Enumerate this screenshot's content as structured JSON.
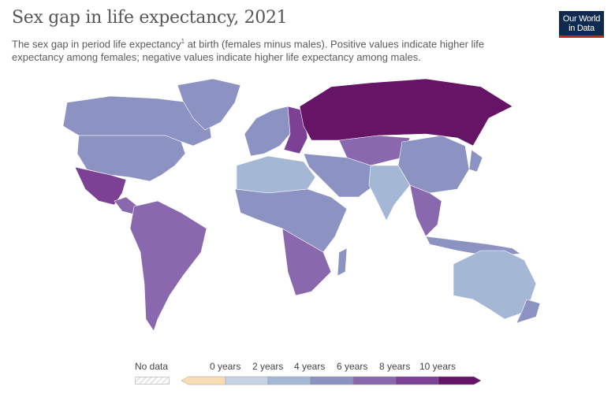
{
  "header": {
    "title": "Sex gap in life expectancy, 2021",
    "subtitle_a": "The sex gap in period life expectancy",
    "subtitle_sup": "1",
    "subtitle_b": " at birth (females minus males). Positive values indicate higher life expectancy among females; negative values indicate higher life expectancy among males.",
    "logo_line1": "Our World",
    "logo_line2": "in Data"
  },
  "legend": {
    "no_data": "No data",
    "ticks": [
      "0 years",
      "2 years",
      "4 years",
      "6 years",
      "8 years",
      "10 years"
    ],
    "bins": [
      {
        "range": "<0",
        "color": "#f8dcb3"
      },
      {
        "range": "0-2",
        "color": "#c6d3e4"
      },
      {
        "range": "2-4",
        "color": "#a4b8d6"
      },
      {
        "range": "4-6",
        "color": "#8c93c2"
      },
      {
        "range": "6-8",
        "color": "#8a68ae"
      },
      {
        "range": "8-10",
        "color": "#7c4095"
      },
      {
        "range": ">10",
        "color": "#651466"
      }
    ]
  },
  "regions": [
    {
      "name": "Canada",
      "color": "#8c93c2"
    },
    {
      "name": "United States",
      "color": "#8c93c2"
    },
    {
      "name": "Greenland",
      "color": "#8c93c2"
    },
    {
      "name": "Mexico",
      "color": "#7c4095"
    },
    {
      "name": "Central America",
      "color": "#8a68ae"
    },
    {
      "name": "South America",
      "color": "#8a68ae"
    },
    {
      "name": "Western Europe",
      "color": "#8c93c2"
    },
    {
      "name": "Eastern Europe",
      "color": "#7c4095"
    },
    {
      "name": "Russia",
      "color": "#651466"
    },
    {
      "name": "Central Asia",
      "color": "#8a68ae"
    },
    {
      "name": "Middle East",
      "color": "#8c93c2"
    },
    {
      "name": "North Africa",
      "color": "#a4b8d6"
    },
    {
      "name": "Sub-Saharan Africa",
      "color": "#8c93c2"
    },
    {
      "name": "Southern Africa",
      "color": "#8a68ae"
    },
    {
      "name": "India",
      "color": "#a4b8d6"
    },
    {
      "name": "China",
      "color": "#8c93c2"
    },
    {
      "name": "Southeast Asia",
      "color": "#8a68ae"
    },
    {
      "name": "Indonesia",
      "color": "#8c93c2"
    },
    {
      "name": "Australia",
      "color": "#a4b8d6"
    },
    {
      "name": "New Zealand",
      "color": "#8c93c2"
    },
    {
      "name": "Japan",
      "color": "#8c93c2"
    },
    {
      "name": "Madagascar",
      "color": "#8c93c2"
    }
  ]
}
